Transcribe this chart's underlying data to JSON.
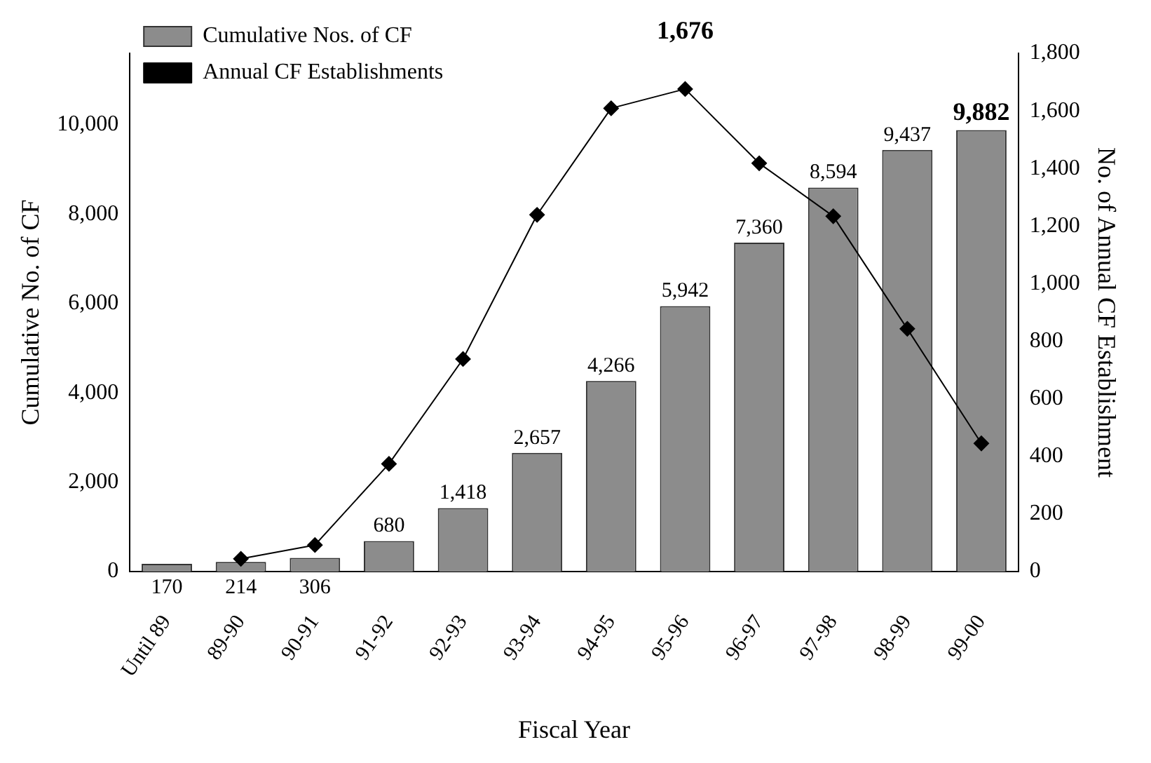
{
  "chart_data": {
    "type": "bar",
    "xlabel": "Fiscal Year",
    "ylabel": "Cumulative No. of CF",
    "y2label": "No. of Annual CF Establishment",
    "categories": [
      "Until 89",
      "89-90",
      "90-91",
      "91-92",
      "92-93",
      "93-94",
      "94-95",
      "95-96",
      "96-97",
      "97-98",
      "98-99",
      "99-00"
    ],
    "series": [
      {
        "name": "Cumulative Nos. of CF",
        "type": "bar",
        "color": "#8c8c8c",
        "values": [
          170,
          214,
          306,
          680,
          1418,
          2657,
          4266,
          5942,
          7360,
          8594,
          9437,
          9882
        ],
        "value_labels": [
          "170",
          "214",
          "306",
          "680",
          "1,418",
          "2,657",
          "4,266",
          "5,942",
          "7,360",
          "8,594",
          "9,437",
          "9,882"
        ]
      },
      {
        "name": "Annual CF Establishments",
        "type": "line",
        "axis": "y2",
        "color": "#000000",
        "marker": "diamond",
        "values": [
          null,
          44,
          92,
          374,
          738,
          1239,
          1609,
          1676,
          1418,
          1234,
          843,
          445
        ],
        "value_labels": [
          null,
          null,
          null,
          null,
          null,
          null,
          null,
          "1,676",
          null,
          null,
          null,
          null
        ]
      }
    ],
    "ylim": [
      0,
      11600
    ],
    "yticks": [
      {
        "value": 0,
        "label": "0"
      },
      {
        "value": 2000,
        "label": "2,000"
      },
      {
        "value": 4000,
        "label": "4,000"
      },
      {
        "value": 6000,
        "label": "6,000"
      },
      {
        "value": 8000,
        "label": "8,000"
      },
      {
        "value": 10000,
        "label": "10,000"
      }
    ],
    "y2lim": [
      0,
      1800
    ],
    "y2ticks": [
      {
        "value": 0,
        "label": "0"
      },
      {
        "value": 200,
        "label": "200"
      },
      {
        "value": 400,
        "label": "400"
      },
      {
        "value": 600,
        "label": "600"
      },
      {
        "value": 800,
        "label": "800"
      },
      {
        "value": 1000,
        "label": "1,000"
      },
      {
        "value": 1200,
        "label": "1,200"
      },
      {
        "value": 1400,
        "label": "1,400"
      },
      {
        "value": 1600,
        "label": "1,600"
      },
      {
        "value": 1800,
        "label": "1,800"
      }
    ],
    "grid": false,
    "legend": "top left"
  }
}
